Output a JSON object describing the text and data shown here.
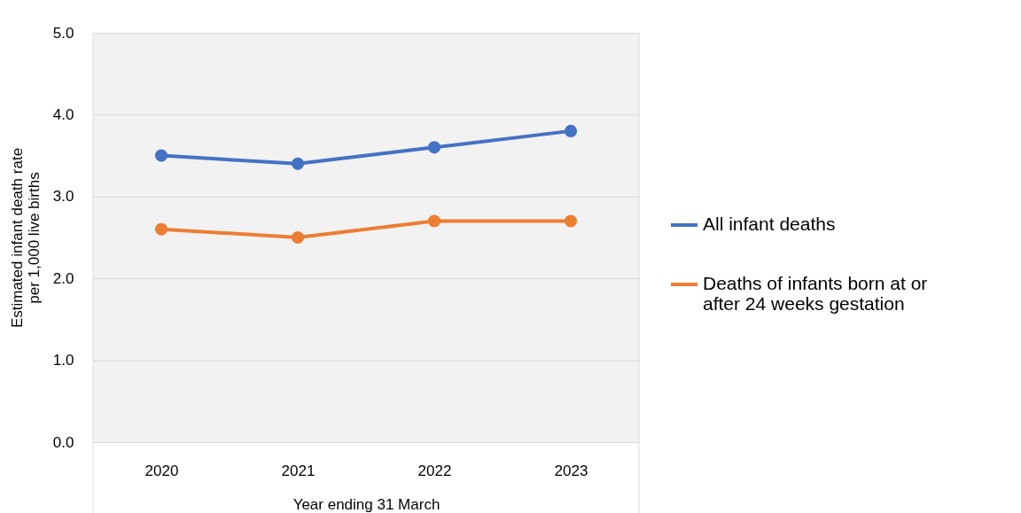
{
  "chart_data": {
    "type": "line",
    "xlabel": "Year ending 31 March",
    "ylabel": "Estimated infant death rate per 1,000 live births",
    "categories": [
      "2020",
      "2021",
      "2022",
      "2023"
    ],
    "series": [
      {
        "name": "All infant deaths",
        "color": "#4472c4",
        "values": [
          3.5,
          3.4,
          3.6,
          3.8
        ]
      },
      {
        "name": "Deaths of infants born at or after 24 weeks gestation",
        "color": "#ed7d31",
        "values": [
          2.6,
          2.5,
          2.7,
          2.7
        ]
      }
    ],
    "ylim": [
      0,
      5
    ],
    "yticks": [
      {
        "value": 0,
        "label": "0.0"
      },
      {
        "value": 1,
        "label": "1.0"
      },
      {
        "value": 2,
        "label": "2.0"
      },
      {
        "value": 3,
        "label": "3.0"
      },
      {
        "value": 4,
        "label": "4.0"
      },
      {
        "value": 5,
        "label": "5.0"
      }
    ],
    "grid": "y",
    "legend": "right",
    "marker": "circle",
    "line_style": "solid"
  }
}
